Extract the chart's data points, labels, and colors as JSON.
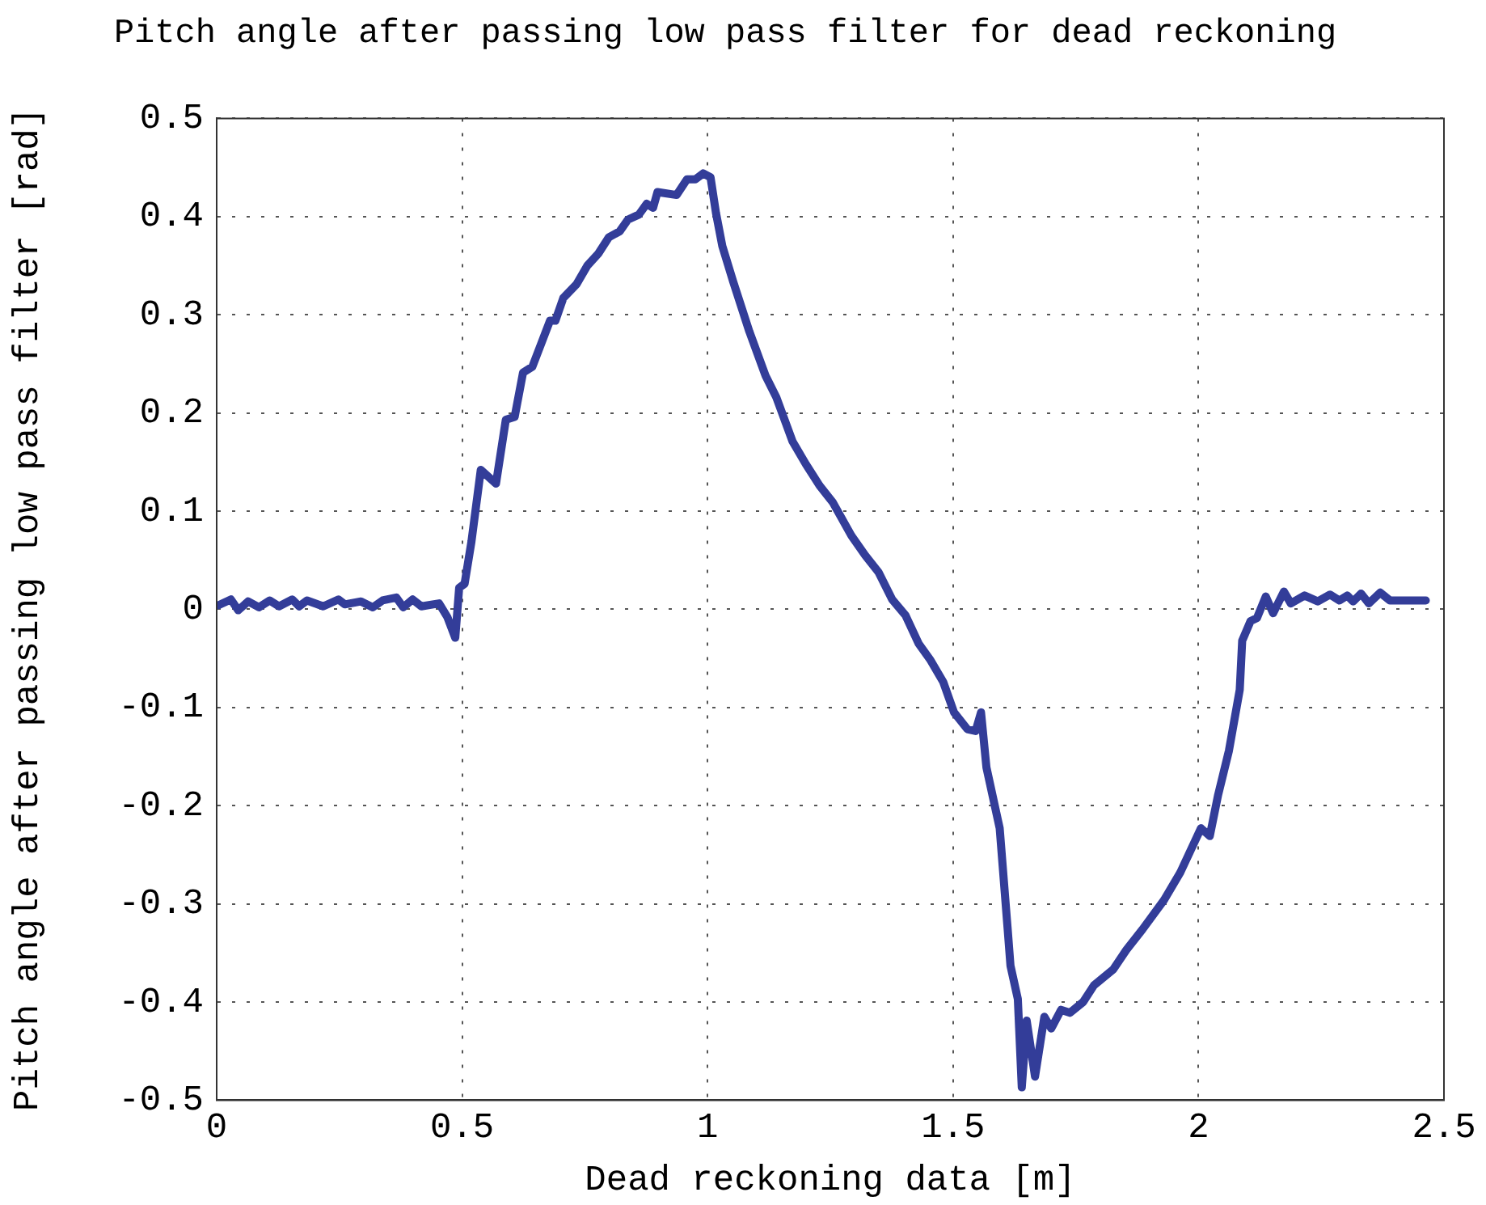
{
  "chart_data": {
    "type": "line",
    "title": "Pitch angle after passing low pass filter for dead reckoning",
    "xlabel": "Dead reckoning data [m]",
    "ylabel": "Pitch angle after passing low pass filter [rad]",
    "x": [
      0.003,
      0.029,
      0.044,
      0.064,
      0.086,
      0.108,
      0.127,
      0.154,
      0.168,
      0.184,
      0.217,
      0.248,
      0.261,
      0.294,
      0.318,
      0.338,
      0.366,
      0.38,
      0.399,
      0.417,
      0.453,
      0.47,
      0.486,
      0.494,
      0.505,
      0.519,
      0.538,
      0.569,
      0.589,
      0.607,
      0.624,
      0.643,
      0.679,
      0.69,
      0.706,
      0.733,
      0.755,
      0.777,
      0.799,
      0.821,
      0.838,
      0.86,
      0.876,
      0.889,
      0.898,
      0.937,
      0.958,
      0.975,
      0.991,
      1.006,
      1.017,
      1.03,
      1.052,
      1.085,
      1.118,
      1.14,
      1.173,
      1.2,
      1.228,
      1.255,
      1.293,
      1.321,
      1.348,
      1.376,
      1.403,
      1.43,
      1.453,
      1.48,
      1.502,
      1.529,
      1.546,
      1.557,
      1.568,
      1.595,
      1.611,
      1.617,
      1.632,
      1.64,
      1.65,
      1.667,
      1.686,
      1.7,
      1.72,
      1.738,
      1.765,
      1.787,
      1.826,
      1.853,
      1.886,
      1.93,
      1.963,
      2.005,
      2.023,
      2.04,
      2.062,
      2.084,
      2.089,
      2.106,
      2.119,
      2.137,
      2.152,
      2.174,
      2.188,
      2.216,
      2.243,
      2.268,
      2.287,
      2.303,
      2.315,
      2.331,
      2.347,
      2.37,
      2.39,
      2.463
    ],
    "series": [
      {
        "color": "#333d99",
        "values": [
          0.004,
          0.01,
          -0.001,
          0.008,
          0.002,
          0.009,
          0.003,
          0.01,
          0.003,
          0.009,
          0.003,
          0.01,
          0.005,
          0.008,
          0.002,
          0.009,
          0.012,
          0.002,
          0.01,
          0.003,
          0.006,
          -0.008,
          -0.029,
          0.022,
          0.026,
          0.069,
          0.142,
          0.128,
          0.193,
          0.196,
          0.241,
          0.247,
          0.294,
          0.294,
          0.317,
          0.331,
          0.35,
          0.362,
          0.379,
          0.385,
          0.397,
          0.402,
          0.413,
          0.409,
          0.425,
          0.422,
          0.438,
          0.438,
          0.444,
          0.44,
          0.404,
          0.37,
          0.334,
          0.283,
          0.238,
          0.216,
          0.171,
          0.148,
          0.126,
          0.109,
          0.075,
          0.055,
          0.038,
          0.01,
          -0.006,
          -0.035,
          -0.051,
          -0.074,
          -0.105,
          -0.122,
          -0.124,
          -0.105,
          -0.161,
          -0.223,
          -0.324,
          -0.363,
          -0.397,
          -0.487,
          -0.419,
          -0.476,
          -0.415,
          -0.427,
          -0.408,
          -0.411,
          -0.4,
          -0.383,
          -0.367,
          -0.347,
          -0.326,
          -0.296,
          -0.268,
          -0.223,
          -0.231,
          -0.189,
          -0.144,
          -0.082,
          -0.032,
          -0.012,
          -0.009,
          0.013,
          -0.004,
          0.018,
          0.006,
          0.014,
          0.008,
          0.015,
          0.009,
          0.014,
          0.008,
          0.016,
          0.006,
          0.017,
          0.009,
          0.009
        ]
      }
    ],
    "xlim": [
      0,
      2.5
    ],
    "xticks": [
      0,
      0.5,
      1,
      1.5,
      2,
      2.5
    ],
    "ylim": [
      -0.5,
      0.5
    ],
    "yticks": [
      -0.5,
      -0.4,
      -0.3,
      -0.2,
      -0.1,
      0,
      0.1,
      0.2,
      0.3,
      0.4,
      0.5
    ],
    "grid": true,
    "legend": false,
    "marker": "none",
    "line_style": "solid"
  }
}
